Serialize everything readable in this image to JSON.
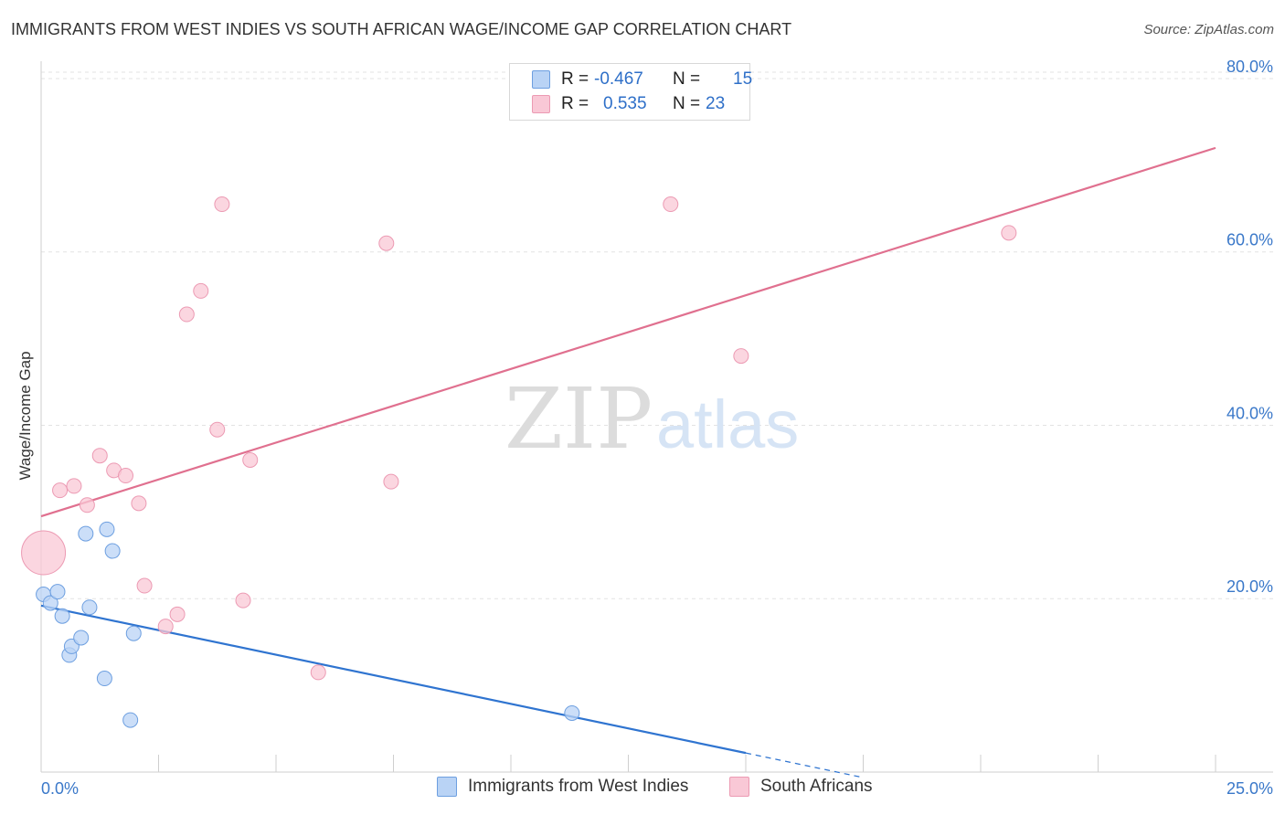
{
  "header": {
    "title": "IMMIGRANTS FROM WEST INDIES VS SOUTH AFRICAN WAGE/INCOME GAP CORRELATION CHART",
    "source": "Source: ZipAtlas.com"
  },
  "legend_top": {
    "rows": [
      {
        "r_label": "R =",
        "r_value": "-0.467",
        "n_label": "N =",
        "n_value": "15"
      },
      {
        "r_label": "R =",
        "r_value": "0.535",
        "n_label": "N =",
        "n_value": "23"
      }
    ]
  },
  "watermark": {
    "zip": "ZIP",
    "atlas": "atlas"
  },
  "colors": {
    "blue_fill": "#b9d3f5",
    "blue_stroke": "#6d9fe0",
    "blue_line": "#2f74d0",
    "pink_fill": "#f9c8d6",
    "pink_stroke": "#ec9ab3",
    "pink_line": "#e0708f",
    "tick_label": "#3a78c9",
    "grid": "#e3e3e3"
  },
  "chart_data": {
    "type": "scatter",
    "title": "IMMIGRANTS FROM WEST INDIES VS SOUTH AFRICAN WAGE/INCOME GAP CORRELATION CHART",
    "xlabel": "",
    "ylabel": "Wage/Income Gap",
    "xlim": [
      0,
      25
    ],
    "ylim": [
      0,
      82
    ],
    "x_tick_labels": [
      "0.0%",
      "25.0%"
    ],
    "y_ticks": [
      20,
      40,
      60,
      80
    ],
    "y_tick_labels": [
      "20.0%",
      "40.0%",
      "60.0%",
      "80.0%"
    ],
    "grid": true,
    "legend_position": "bottom",
    "series": [
      {
        "name": "Immigrants from West Indies",
        "color": "#6d9fe0",
        "points": [
          {
            "x": 0.05,
            "y": 20.5
          },
          {
            "x": 0.2,
            "y": 19.5
          },
          {
            "x": 0.35,
            "y": 20.8
          },
          {
            "x": 0.45,
            "y": 18.0
          },
          {
            "x": 0.6,
            "y": 13.5
          },
          {
            "x": 0.65,
            "y": 14.5
          },
          {
            "x": 0.85,
            "y": 15.5
          },
          {
            "x": 0.95,
            "y": 27.5
          },
          {
            "x": 1.03,
            "y": 19.0
          },
          {
            "x": 1.35,
            "y": 10.8
          },
          {
            "x": 1.4,
            "y": 28.0
          },
          {
            "x": 1.52,
            "y": 25.5
          },
          {
            "x": 1.9,
            "y": 6.0
          },
          {
            "x": 1.97,
            "y": 16.0
          },
          {
            "x": 11.3,
            "y": 6.8
          }
        ],
        "trend": {
          "x1": 0,
          "y1": 19.2,
          "x2": 15.0,
          "y2": 2.2,
          "dash_to_x": 17.5
        }
      },
      {
        "name": "South Africans",
        "color": "#ec9ab3",
        "points": [
          {
            "x": 0.05,
            "y": 25.3,
            "large": true
          },
          {
            "x": 0.4,
            "y": 32.5
          },
          {
            "x": 0.7,
            "y": 33.0
          },
          {
            "x": 0.98,
            "y": 30.8
          },
          {
            "x": 1.25,
            "y": 36.5
          },
          {
            "x": 1.55,
            "y": 34.8
          },
          {
            "x": 1.8,
            "y": 34.2
          },
          {
            "x": 2.08,
            "y": 31.0
          },
          {
            "x": 2.2,
            "y": 21.5
          },
          {
            "x": 2.65,
            "y": 16.8
          },
          {
            "x": 2.9,
            "y": 18.2
          },
          {
            "x": 3.1,
            "y": 52.8
          },
          {
            "x": 3.4,
            "y": 55.5
          },
          {
            "x": 3.75,
            "y": 39.5
          },
          {
            "x": 3.85,
            "y": 65.5
          },
          {
            "x": 4.3,
            "y": 19.8
          },
          {
            "x": 4.45,
            "y": 36.0
          },
          {
            "x": 5.9,
            "y": 11.5
          },
          {
            "x": 7.35,
            "y": 61.0
          },
          {
            "x": 7.45,
            "y": 33.5
          },
          {
            "x": 13.4,
            "y": 65.5
          },
          {
            "x": 14.9,
            "y": 48.0
          },
          {
            "x": 20.6,
            "y": 62.2
          }
        ],
        "trend": {
          "x1": 0,
          "y1": 29.5,
          "x2": 25,
          "y2": 72.0
        }
      }
    ]
  },
  "bottom_legend": {
    "items": [
      {
        "label": "Immigrants from West Indies"
      },
      {
        "label": "South Africans"
      }
    ]
  }
}
